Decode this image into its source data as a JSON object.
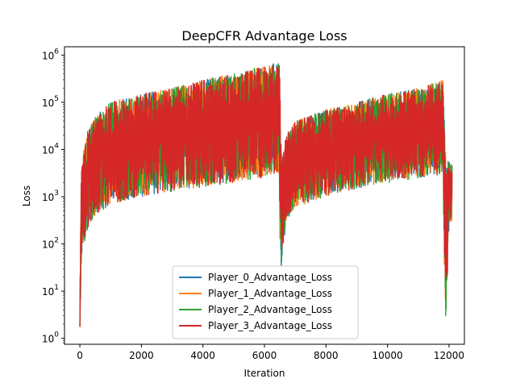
{
  "chart_data": {
    "type": "line",
    "title": "DeepCFR Advantage Loss",
    "xlabel": "Iteration",
    "ylabel": "Loss",
    "xlim": [
      -500,
      12500
    ],
    "ylim": [
      0.75,
      1500000
    ],
    "yscale": "log",
    "xticks": [
      0,
      2000,
      4000,
      6000,
      8000,
      10000,
      12000
    ],
    "yticks": [
      {
        "value": 1,
        "base": "10",
        "exp": "0"
      },
      {
        "value": 10,
        "base": "10",
        "exp": "1"
      },
      {
        "value": 100,
        "base": "10",
        "exp": "2"
      },
      {
        "value": 1000,
        "base": "10",
        "exp": "3"
      },
      {
        "value": 10000,
        "base": "10",
        "exp": "4"
      },
      {
        "value": 100000,
        "base": "10",
        "exp": "5"
      },
      {
        "value": 1000000,
        "base": "10",
        "exp": "6"
      }
    ],
    "legend_position": "lower center",
    "grid": false,
    "series": [
      {
        "name": "Player_0_Advantage_Loss",
        "color": "#1f77b4"
      },
      {
        "name": "Player_1_Advantage_Loss",
        "color": "#ff7f0e"
      },
      {
        "name": "Player_2_Advantage_Loss",
        "color": "#2ca02c"
      },
      {
        "name": "Player_3_Advantage_Loss",
        "color": "#d62728"
      }
    ],
    "envelope": {
      "description_x": "iteration",
      "x": [
        0,
        40,
        100,
        250,
        500,
        1000,
        2000,
        3000,
        4000,
        5000,
        6000,
        6480,
        6500,
        6560,
        6700,
        7000,
        8000,
        9000,
        10000,
        11000,
        11800,
        11880,
        11920,
        12000,
        12100
      ],
      "upper": [
        2,
        3000,
        8000,
        25000,
        50000,
        100000,
        150000,
        200000,
        300000,
        400000,
        600000,
        700000,
        300000,
        5000,
        20000,
        40000,
        70000,
        100000,
        150000,
        200000,
        300000,
        10000,
        4000,
        8000,
        5000
      ],
      "lower": [
        1.4,
        30,
        80,
        200,
        400,
        700,
        1000,
        1300,
        1600,
        2000,
        2500,
        3000,
        40,
        30,
        300,
        600,
        1000,
        1500,
        2000,
        2500,
        3000,
        3,
        2,
        300,
        300
      ]
    }
  }
}
